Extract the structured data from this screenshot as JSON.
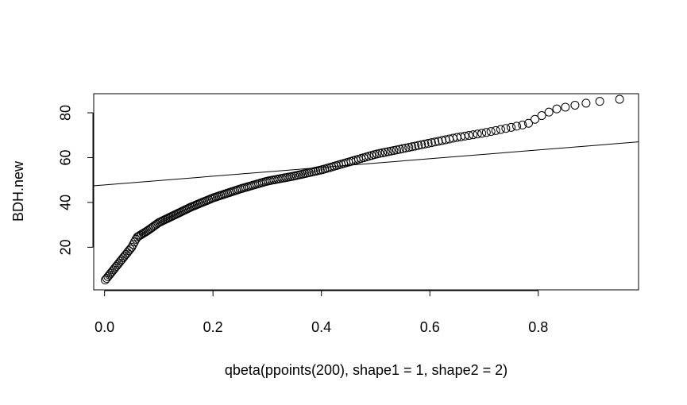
{
  "chart_data": {
    "type": "scatter",
    "title": "",
    "xlabel": "qbeta(ppoints(200), shape1 = 1, shape2 = 2)",
    "ylabel": "BDH.new",
    "xlim": [
      -0.02,
      0.985
    ],
    "ylim": [
      1.0,
      88.5
    ],
    "x_ticks": [
      "0.0",
      "0.2",
      "0.4",
      "0.6",
      "0.8"
    ],
    "x_tick_values": [
      0.0,
      0.2,
      0.4,
      0.6,
      0.8
    ],
    "y_ticks": [
      "20",
      "40",
      "60",
      "80"
    ],
    "y_tick_values": [
      20,
      40,
      60,
      80
    ],
    "grid": false,
    "marker": "open-circle",
    "color": "#000000",
    "reference_line": {
      "intercept": 47.8,
      "slope": 19.5
    },
    "quantile_points": [
      [
        0.0,
        5
      ],
      [
        0.02,
        11
      ],
      [
        0.035,
        15.5
      ],
      [
        0.05,
        20
      ],
      [
        0.06,
        24.5
      ],
      [
        0.08,
        27.5
      ],
      [
        0.1,
        31
      ],
      [
        0.13,
        34.5
      ],
      [
        0.16,
        38
      ],
      [
        0.2,
        42
      ],
      [
        0.25,
        46
      ],
      [
        0.3,
        49.5
      ],
      [
        0.35,
        51.8
      ],
      [
        0.4,
        54.5
      ],
      [
        0.45,
        58
      ],
      [
        0.5,
        61.5
      ],
      [
        0.55,
        64
      ],
      [
        0.6,
        66.5
      ],
      [
        0.65,
        69
      ],
      [
        0.7,
        71
      ],
      [
        0.75,
        73.5
      ],
      [
        0.78,
        75
      ],
      [
        0.8,
        78
      ],
      [
        0.83,
        81.5
      ],
      [
        0.86,
        83
      ],
      [
        0.88,
        84
      ],
      [
        0.91,
        85
      ],
      [
        0.95,
        86
      ]
    ]
  }
}
